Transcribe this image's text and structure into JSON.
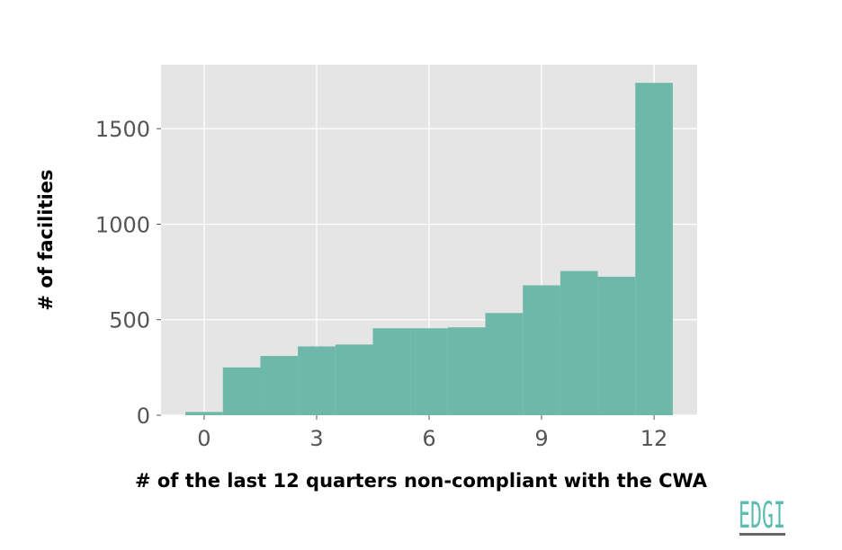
{
  "chart_data": {
    "type": "bar",
    "title": "",
    "xlabel": "# of the last 12 quarters non-compliant with the CWA",
    "ylabel": "# of facilities",
    "x": [
      0,
      1,
      2,
      3,
      4,
      5,
      6,
      7,
      8,
      9,
      10,
      11,
      12
    ],
    "values": [
      17,
      250,
      310,
      360,
      370,
      455,
      455,
      460,
      535,
      680,
      755,
      725,
      1740
    ],
    "bar_width": 1.0,
    "xlim": [
      -1.15,
      13.15
    ],
    "ylim": [
      0,
      1835
    ],
    "xticks": [
      0,
      3,
      6,
      9,
      12
    ],
    "yticks": [
      0,
      500,
      1000,
      1500
    ],
    "grid": true,
    "style": "ggplot",
    "colors": {
      "bar": "#6db8a8",
      "plot_background": "#e5e5e5",
      "grid": "#ffffff",
      "tick_label": "#555555",
      "logo": "#5bbcb0",
      "logo_underline": "#666666"
    }
  },
  "logo": {
    "text": "EDGI"
  }
}
